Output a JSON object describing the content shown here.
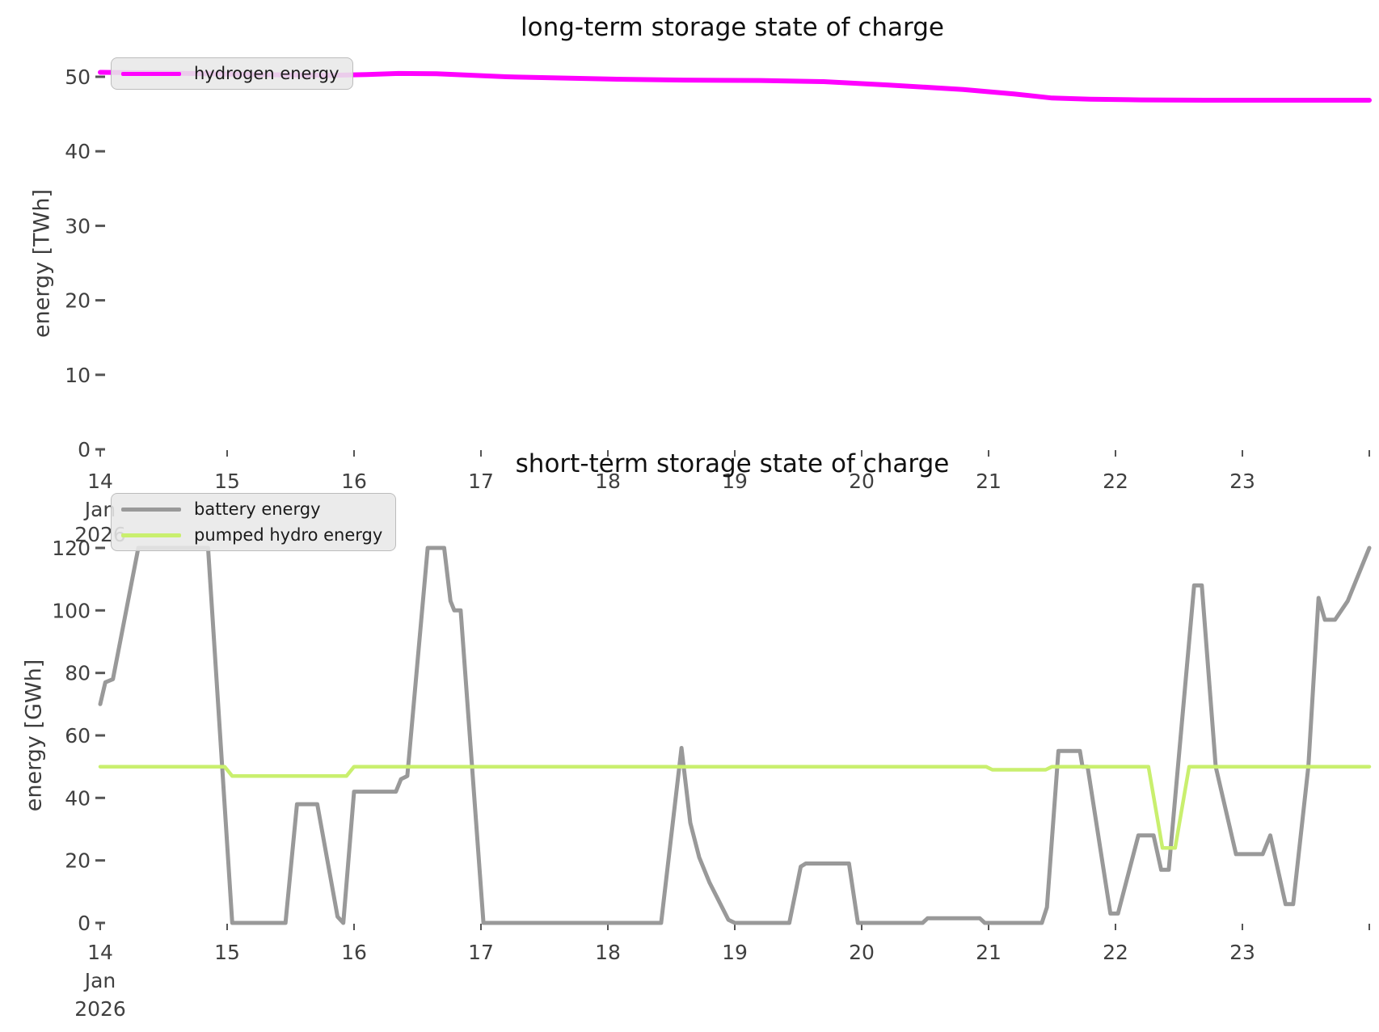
{
  "page": {
    "background": "#ffffff"
  },
  "chart_data": [
    {
      "type": "line",
      "title": "long-term storage state of charge",
      "ylabel": "energy [TWh]",
      "xlabel": "",
      "x_unit": "day of Jan 2026",
      "x_range": [
        14,
        24
      ],
      "ylim": [
        0,
        53.8
      ],
      "grid": false,
      "legend_position": "upper left",
      "x_tick_labels": [
        "14",
        "15",
        "16",
        "17",
        "18",
        "19",
        "20",
        "21",
        "22",
        "23"
      ],
      "x_tick_days": [
        14,
        15,
        16,
        17,
        18,
        19,
        20,
        21,
        22,
        23
      ],
      "x_tick_marks": [
        14,
        15,
        16,
        17,
        18,
        19,
        20,
        21,
        22,
        23,
        24
      ],
      "x_sublabels": [
        "Jan",
        "2026"
      ],
      "y_ticks": [
        0,
        10,
        20,
        30,
        40,
        50
      ],
      "series": [
        {
          "name": "hydrogen energy",
          "color": "#ff00ff",
          "points": [
            [
              14.0,
              50.6
            ],
            [
              14.5,
              50.5
            ],
            [
              15.2,
              50.3
            ],
            [
              15.8,
              50.2
            ],
            [
              16.1,
              50.3
            ],
            [
              16.35,
              50.45
            ],
            [
              16.65,
              50.4
            ],
            [
              17.2,
              50.0
            ],
            [
              18.0,
              49.7
            ],
            [
              18.6,
              49.55
            ],
            [
              19.2,
              49.5
            ],
            [
              19.7,
              49.35
            ],
            [
              20.2,
              48.9
            ],
            [
              20.8,
              48.3
            ],
            [
              21.2,
              47.7
            ],
            [
              21.5,
              47.15
            ],
            [
              21.8,
              47.0
            ],
            [
              22.2,
              46.9
            ],
            [
              22.7,
              46.85
            ],
            [
              24.0,
              46.85
            ]
          ]
        }
      ]
    },
    {
      "type": "line",
      "title": "short-term storage state of charge",
      "ylabel": "energy [GWh]",
      "xlabel": "",
      "x_unit": "day of Jan 2026",
      "x_range": [
        14,
        24
      ],
      "ylim": [
        0,
        140
      ],
      "grid": false,
      "legend_position": "upper left",
      "x_tick_labels": [
        "14",
        "15",
        "16",
        "17",
        "18",
        "19",
        "20",
        "21",
        "22",
        "23"
      ],
      "x_tick_days": [
        14,
        15,
        16,
        17,
        18,
        19,
        20,
        21,
        22,
        23
      ],
      "x_tick_marks": [
        14,
        15,
        16,
        17,
        18,
        19,
        20,
        21,
        22,
        23,
        24
      ],
      "x_sublabels": [
        "Jan",
        "2026"
      ],
      "y_ticks": [
        0,
        20,
        40,
        60,
        80,
        100,
        120
      ],
      "series": [
        {
          "name": "battery energy",
          "color": "#999999",
          "points": [
            [
              14.0,
              70
            ],
            [
              14.04,
              77
            ],
            [
              14.1,
              78
            ],
            [
              14.3,
              120
            ],
            [
              14.85,
              120
            ],
            [
              15.04,
              0
            ],
            [
              15.46,
              0
            ],
            [
              15.55,
              38
            ],
            [
              15.71,
              38
            ],
            [
              15.87,
              2
            ],
            [
              15.915,
              0
            ],
            [
              16.0,
              42
            ],
            [
              16.33,
              42
            ],
            [
              16.37,
              46
            ],
            [
              16.42,
              47
            ],
            [
              16.58,
              120
            ],
            [
              16.71,
              120
            ],
            [
              16.76,
              103
            ],
            [
              16.79,
              100
            ],
            [
              16.84,
              100
            ],
            [
              17.02,
              0
            ],
            [
              18.42,
              0
            ],
            [
              18.58,
              56
            ],
            [
              18.65,
              32
            ],
            [
              18.72,
              21
            ],
            [
              18.8,
              13
            ],
            [
              18.95,
              1
            ],
            [
              19.0,
              0
            ],
            [
              19.43,
              0
            ],
            [
              19.52,
              18
            ],
            [
              19.56,
              19
            ],
            [
              19.9,
              19
            ],
            [
              19.97,
              0
            ],
            [
              20.48,
              0
            ],
            [
              20.52,
              1.5
            ],
            [
              20.93,
              1.5
            ],
            [
              20.97,
              0
            ],
            [
              21.42,
              0
            ],
            [
              21.46,
              5
            ],
            [
              21.55,
              55
            ],
            [
              21.72,
              55
            ],
            [
              21.74,
              50
            ],
            [
              21.78,
              50
            ],
            [
              21.96,
              3
            ],
            [
              22.02,
              3
            ],
            [
              22.18,
              28
            ],
            [
              22.3,
              28
            ],
            [
              22.36,
              17
            ],
            [
              22.42,
              17
            ],
            [
              22.62,
              108
            ],
            [
              22.68,
              108
            ],
            [
              22.79,
              50
            ],
            [
              22.95,
              22
            ],
            [
              23.16,
              22
            ],
            [
              23.22,
              28
            ],
            [
              23.34,
              6
            ],
            [
              23.4,
              6
            ],
            [
              23.52,
              50
            ],
            [
              23.6,
              104
            ],
            [
              23.65,
              97
            ],
            [
              23.73,
              97
            ],
            [
              23.83,
              103
            ],
            [
              24.0,
              120
            ]
          ]
        },
        {
          "name": "pumped hydro energy",
          "color": "#c9ef6e",
          "points": [
            [
              14.0,
              50
            ],
            [
              14.98,
              50
            ],
            [
              15.04,
              47
            ],
            [
              15.94,
              47
            ],
            [
              16.0,
              50
            ],
            [
              20.98,
              50
            ],
            [
              21.03,
              49
            ],
            [
              21.45,
              49
            ],
            [
              21.5,
              50
            ],
            [
              22.26,
              50
            ],
            [
              22.37,
              24
            ],
            [
              22.47,
              24
            ],
            [
              22.58,
              50
            ],
            [
              24.0,
              50
            ]
          ]
        }
      ]
    }
  ]
}
